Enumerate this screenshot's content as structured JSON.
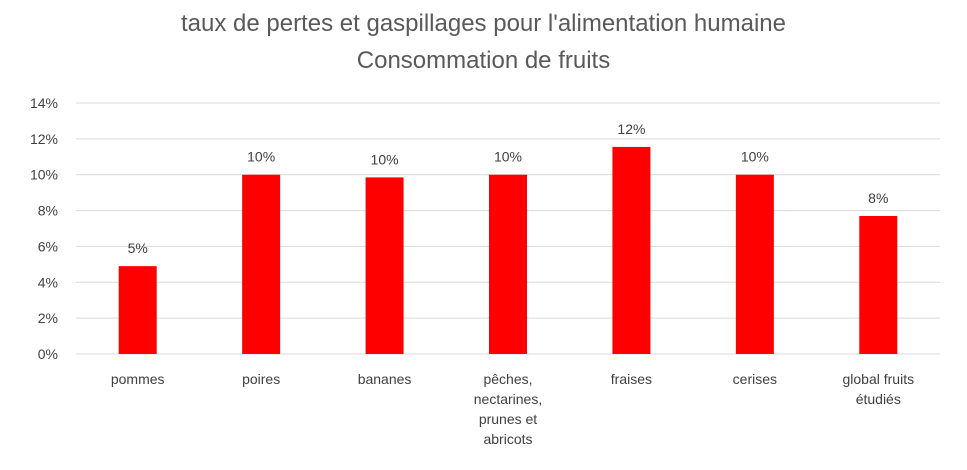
{
  "chart_data": {
    "type": "bar",
    "title": "taux de pertes et gaspillages pour l'alimentation humaine",
    "subtitle": "Consommation de fruits",
    "categories": [
      [
        "pommes"
      ],
      [
        "poires"
      ],
      [
        "bananes"
      ],
      [
        "pêches,",
        "nectarines,",
        "prunes et",
        "abricots"
      ],
      [
        "fraises"
      ],
      [
        "cerises"
      ],
      [
        "global fruits",
        "étudiés"
      ]
    ],
    "values": [
      4.9,
      10.0,
      9.85,
      10.0,
      11.55,
      10.0,
      7.7
    ],
    "data_labels": [
      "5%",
      "10%",
      "10%",
      "10%",
      "12%",
      "10%",
      "8%"
    ],
    "ylim": [
      0,
      14
    ],
    "yticks": [
      0,
      2,
      4,
      6,
      8,
      10,
      12,
      14
    ],
    "ytick_labels": [
      "0%",
      "2%",
      "4%",
      "6%",
      "8%",
      "10%",
      "12%",
      "14%"
    ],
    "grid": true,
    "bar_color": "#ff0000",
    "grid_color": "#d9d9d9"
  }
}
